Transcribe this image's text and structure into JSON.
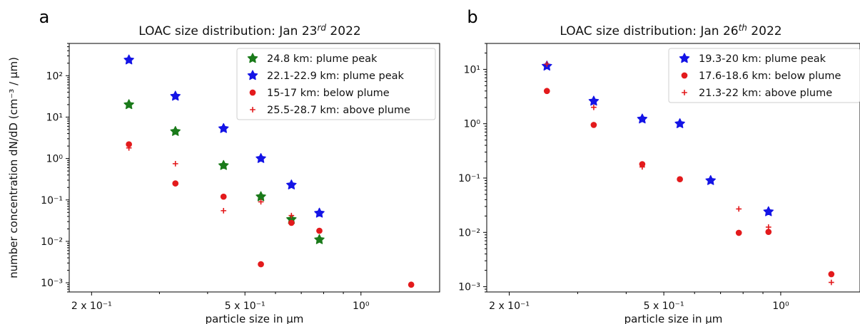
{
  "chart_data": [
    {
      "panel_label": "a",
      "type": "scatter",
      "title": {
        "main": "LOAC size distribution: Jan 23",
        "sup": "rd",
        "tail": " 2022"
      },
      "xlabel": "particle size in µm",
      "ylabel": "number concentration dN/dD (cm⁻³ / µm)",
      "xscale": "log",
      "yscale": "log",
      "xlim": [
        0.175,
        1.6
      ],
      "ylim": [
        0.0006,
        600
      ],
      "xticks": [
        {
          "v": 0.2,
          "label": "2 x 10⁻¹"
        },
        {
          "v": 0.5,
          "label": "5 x 10⁻¹"
        },
        {
          "v": 1.0,
          "label": "10⁰"
        }
      ],
      "yticks": [
        {
          "v": 0.001,
          "label": "10⁻³"
        },
        {
          "v": 0.01,
          "label": "10⁻²"
        },
        {
          "v": 0.1,
          "label": "10⁻¹"
        },
        {
          "v": 1,
          "label": "10⁰"
        },
        {
          "v": 10,
          "label": "10¹"
        },
        {
          "v": 100,
          "label": "10²"
        }
      ],
      "legend_position": "top-right",
      "series": [
        {
          "name": "24.8 km: plume peak",
          "marker": "star",
          "color": "#1a7a1a",
          "x": [
            0.25,
            0.33,
            0.44,
            0.55,
            0.66,
            0.78
          ],
          "y": [
            20,
            4.5,
            0.68,
            0.12,
            0.034,
            0.011
          ]
        },
        {
          "name": "22.1-22.9 km: plume peak",
          "marker": "star",
          "color": "#1414e6",
          "x": [
            0.25,
            0.33,
            0.44,
            0.55,
            0.66,
            0.78
          ],
          "y": [
            240,
            32,
            5.3,
            1.0,
            0.23,
            0.048
          ]
        },
        {
          "name": "15-17 km: below plume",
          "marker": "circle",
          "color": "#e31a1c",
          "x": [
            0.25,
            0.33,
            0.44,
            0.55,
            0.66,
            0.78,
            1.35
          ],
          "y": [
            2.2,
            0.25,
            0.12,
            0.0028,
            0.028,
            0.018,
            0.0009
          ]
        },
        {
          "name": "25.5-28.7 km: above plume",
          "marker": "plus",
          "color": "#e31a1c",
          "x": [
            0.25,
            0.33,
            0.44,
            0.55,
            0.66
          ],
          "y": [
            1.8,
            0.75,
            0.055,
            0.09,
            0.042
          ]
        }
      ]
    },
    {
      "panel_label": "b",
      "type": "scatter",
      "title": {
        "main": "LOAC size distribution: Jan 26",
        "sup": "th",
        "tail": " 2022"
      },
      "xlabel": "particle size in µm",
      "ylabel": "",
      "xscale": "log",
      "yscale": "log",
      "xlim": [
        0.175,
        1.6
      ],
      "ylim": [
        0.0008,
        30
      ],
      "xticks": [
        {
          "v": 0.2,
          "label": "2 x 10⁻¹"
        },
        {
          "v": 0.5,
          "label": "5 x 10⁻¹"
        },
        {
          "v": 1.0,
          "label": "10⁰"
        }
      ],
      "yticks": [
        {
          "v": 0.001,
          "label": "10⁻³"
        },
        {
          "v": 0.01,
          "label": "10⁻²"
        },
        {
          "v": 0.1,
          "label": "10⁻¹"
        },
        {
          "v": 1,
          "label": "10⁰"
        },
        {
          "v": 10,
          "label": "10¹"
        }
      ],
      "legend_position": "top-right",
      "series": [
        {
          "name": "19.3-20 km: plume peak",
          "marker": "star",
          "color": "#1414e6",
          "x": [
            0.25,
            0.33,
            0.44,
            0.55,
            0.66,
            0.93
          ],
          "y": [
            11.5,
            2.6,
            1.22,
            1.0,
            0.09,
            0.024
          ]
        },
        {
          "name": "17.6-18.6 km: below plume",
          "marker": "circle",
          "color": "#e31a1c",
          "x": [
            0.25,
            0.33,
            0.44,
            0.55,
            0.78,
            0.93,
            1.35
          ],
          "y": [
            4.0,
            0.95,
            0.18,
            0.095,
            0.0098,
            0.0102,
            0.0017
          ]
        },
        {
          "name": "21.3-22 km: above plume",
          "marker": "plus",
          "color": "#e31a1c",
          "x": [
            0.25,
            0.33,
            0.44,
            0.78,
            0.93,
            1.35
          ],
          "y": [
            12.5,
            2.0,
            0.16,
            0.027,
            0.0125,
            0.0012
          ]
        }
      ]
    }
  ]
}
